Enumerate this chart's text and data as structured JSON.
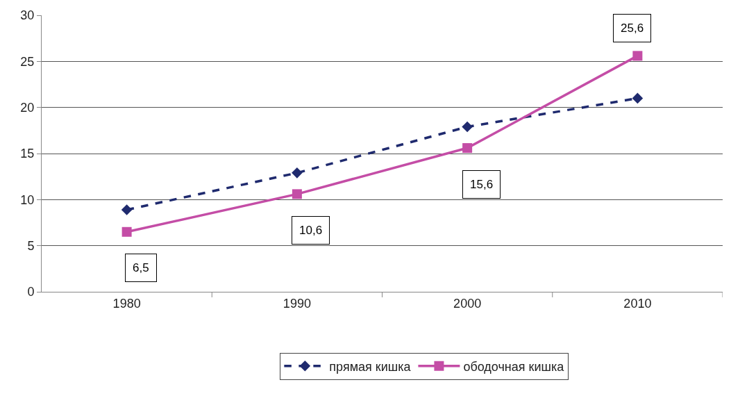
{
  "chart_data": {
    "type": "line",
    "categories": [
      "1980",
      "1990",
      "2000",
      "2010"
    ],
    "series": [
      {
        "name": "прямая кишка",
        "color": "#1f2a6e",
        "values": [
          8.9,
          12.9,
          17.9,
          21
        ],
        "marker": "diamond",
        "line_style": "dashed"
      },
      {
        "name": "ободочная кишка",
        "color": "#c44da6",
        "values": [
          6.5,
          10.6,
          15.6,
          25.6
        ],
        "marker": "square",
        "line_style": "solid",
        "value_labels": [
          "6,5",
          "10,6",
          "15,6",
          "25,6"
        ]
      }
    ],
    "ylim": [
      0,
      30
    ],
    "yticks": [
      0,
      5,
      10,
      15,
      20,
      25,
      30
    ],
    "grid": "y",
    "legend": "bottom"
  }
}
